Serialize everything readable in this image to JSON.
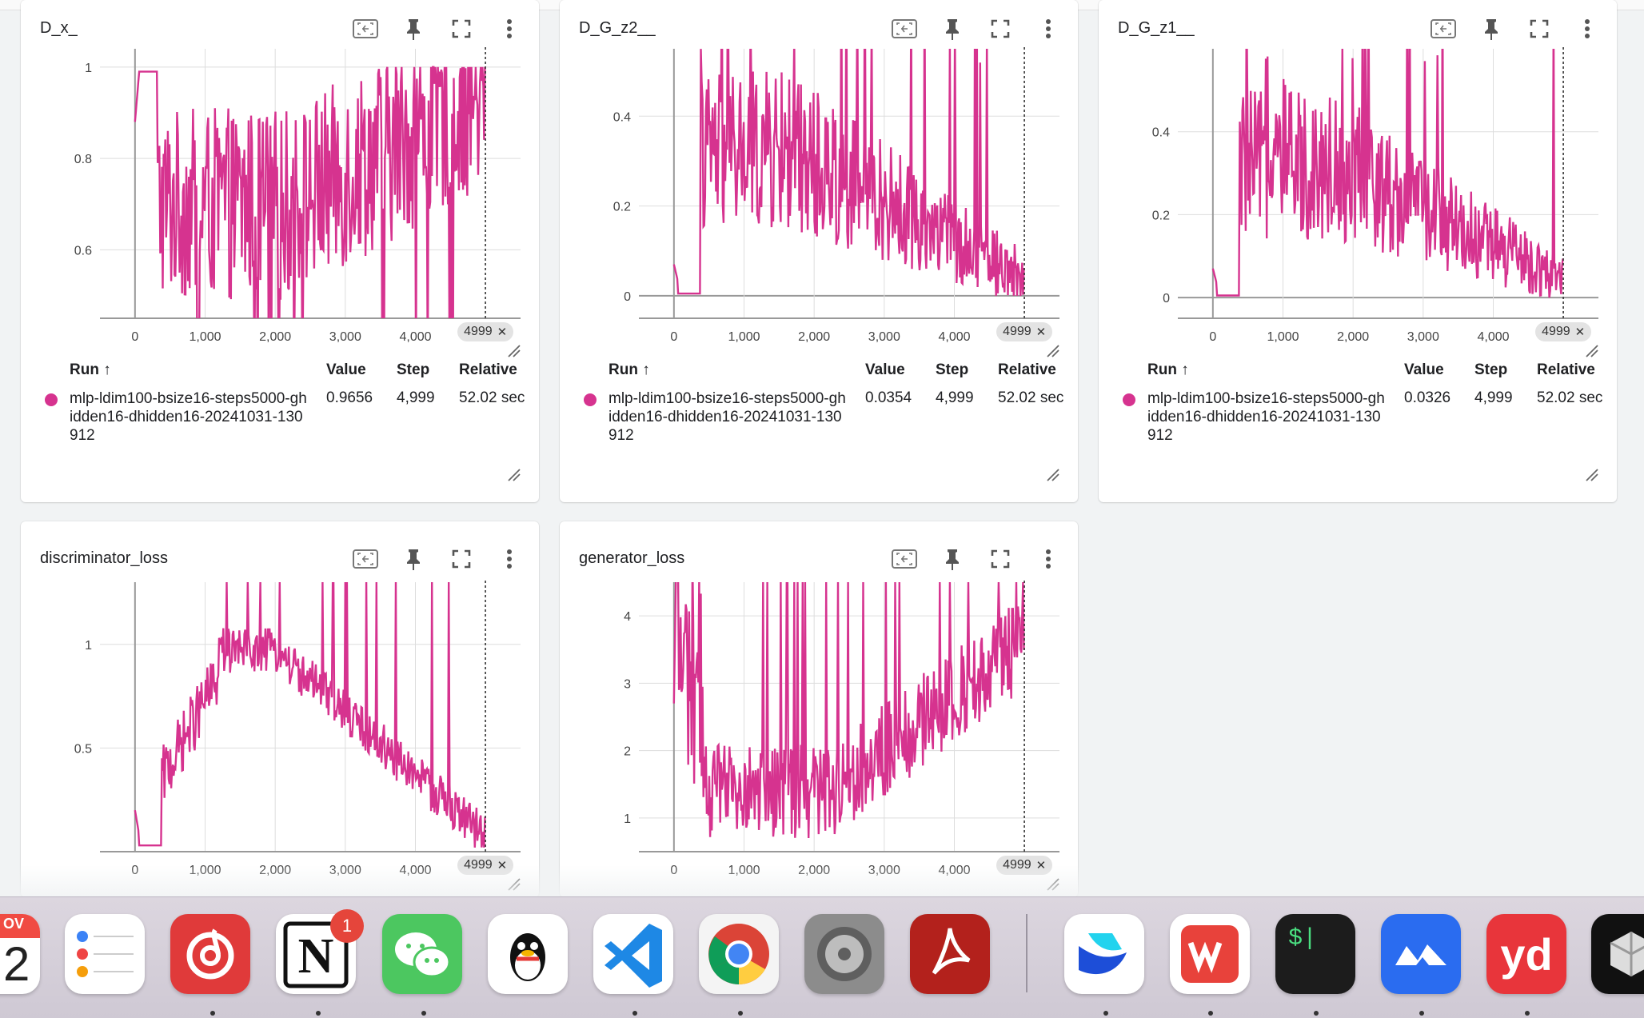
{
  "colors": {
    "series": "#d6338f",
    "card_bg": "#ffffff",
    "page_bg": "#f1f3f4"
  },
  "icons": {
    "fit": "fit-domain-icon",
    "pin": "pin-icon",
    "fullscreen": "fullscreen-icon",
    "menu": "more-vert-icon",
    "resize": "resize-handle-icon"
  },
  "table_headers": {
    "run": "Run ↑",
    "value": "Value",
    "step": "Step",
    "relative": "Relative"
  },
  "run_name": "mlp-ldim100-bsize16-steps5000-ghidden16-dhidden16-20241031-130912",
  "cards": [
    {
      "title": "D_x_",
      "step_chip": "4999",
      "row": {
        "value": "0.9656",
        "step": "4,999",
        "relative": "52.02 sec"
      },
      "chart_data": {
        "type": "line",
        "x_ticks": [
          "0",
          "1,000",
          "2,000",
          "3,000",
          "4,000"
        ],
        "y_ticks": [
          "0.6",
          "0.8",
          "1"
        ],
        "xlim": [
          -500,
          5500
        ],
        "ylim": [
          0.45,
          1.04
        ],
        "marker_step": 4999
      }
    },
    {
      "title": "D_G_z2__",
      "step_chip": "4999",
      "row": {
        "value": "0.0354",
        "step": "4,999",
        "relative": "52.02 sec"
      },
      "chart_data": {
        "type": "line",
        "x_ticks": [
          "0",
          "1,000",
          "2,000",
          "3,000",
          "4,000"
        ],
        "y_ticks": [
          "0",
          "0.2",
          "0.4"
        ],
        "xlim": [
          -500,
          5500
        ],
        "ylim": [
          -0.05,
          0.55
        ],
        "marker_step": 4999
      }
    },
    {
      "title": "D_G_z1__",
      "step_chip": "4999",
      "row": {
        "value": "0.0326",
        "step": "4,999",
        "relative": "52.02 sec"
      },
      "chart_data": {
        "type": "line",
        "x_ticks": [
          "0",
          "1,000",
          "2,000",
          "3,000",
          "4,000"
        ],
        "y_ticks": [
          "0",
          "0.2",
          "0.4"
        ],
        "xlim": [
          -500,
          5500
        ],
        "ylim": [
          -0.05,
          0.6
        ],
        "marker_step": 4999
      }
    },
    {
      "title": "discriminator_loss",
      "step_chip": "4999",
      "chart_data": {
        "type": "line",
        "x_ticks": [
          "0",
          "1,000",
          "2,000",
          "3,000",
          "4,000"
        ],
        "y_ticks": [
          "0.5",
          "1"
        ],
        "xlim": [
          -500,
          5500
        ],
        "ylim": [
          0.0,
          1.3
        ],
        "marker_step": 4999
      }
    },
    {
      "title": "generator_loss",
      "step_chip": "4999",
      "chart_data": {
        "type": "line",
        "x_ticks": [
          "0",
          "1,000",
          "2,000",
          "3,000",
          "4,000"
        ],
        "y_ticks": [
          "1",
          "2",
          "3",
          "4"
        ],
        "xlim": [
          -500,
          5500
        ],
        "ylim": [
          0.5,
          4.5
        ],
        "marker_step": 4999
      }
    }
  ],
  "dock": {
    "apps": [
      "Calendar",
      "Reminders",
      "NetEase Music",
      "Notion",
      "WeChat",
      "QQ",
      "Visual Studio Code",
      "Google Chrome",
      "System Settings",
      "Adobe Acrobat",
      "Feishu",
      "WPS Office",
      "Terminal",
      "Tencent Meeting",
      "Youdao Dictionary",
      "Multipass"
    ],
    "calendar_month": "OV",
    "calendar_day": "2",
    "notion_badge": "1",
    "notion_letter": "N",
    "terminal_prompt": "$|",
    "youdao_text": "yd"
  }
}
